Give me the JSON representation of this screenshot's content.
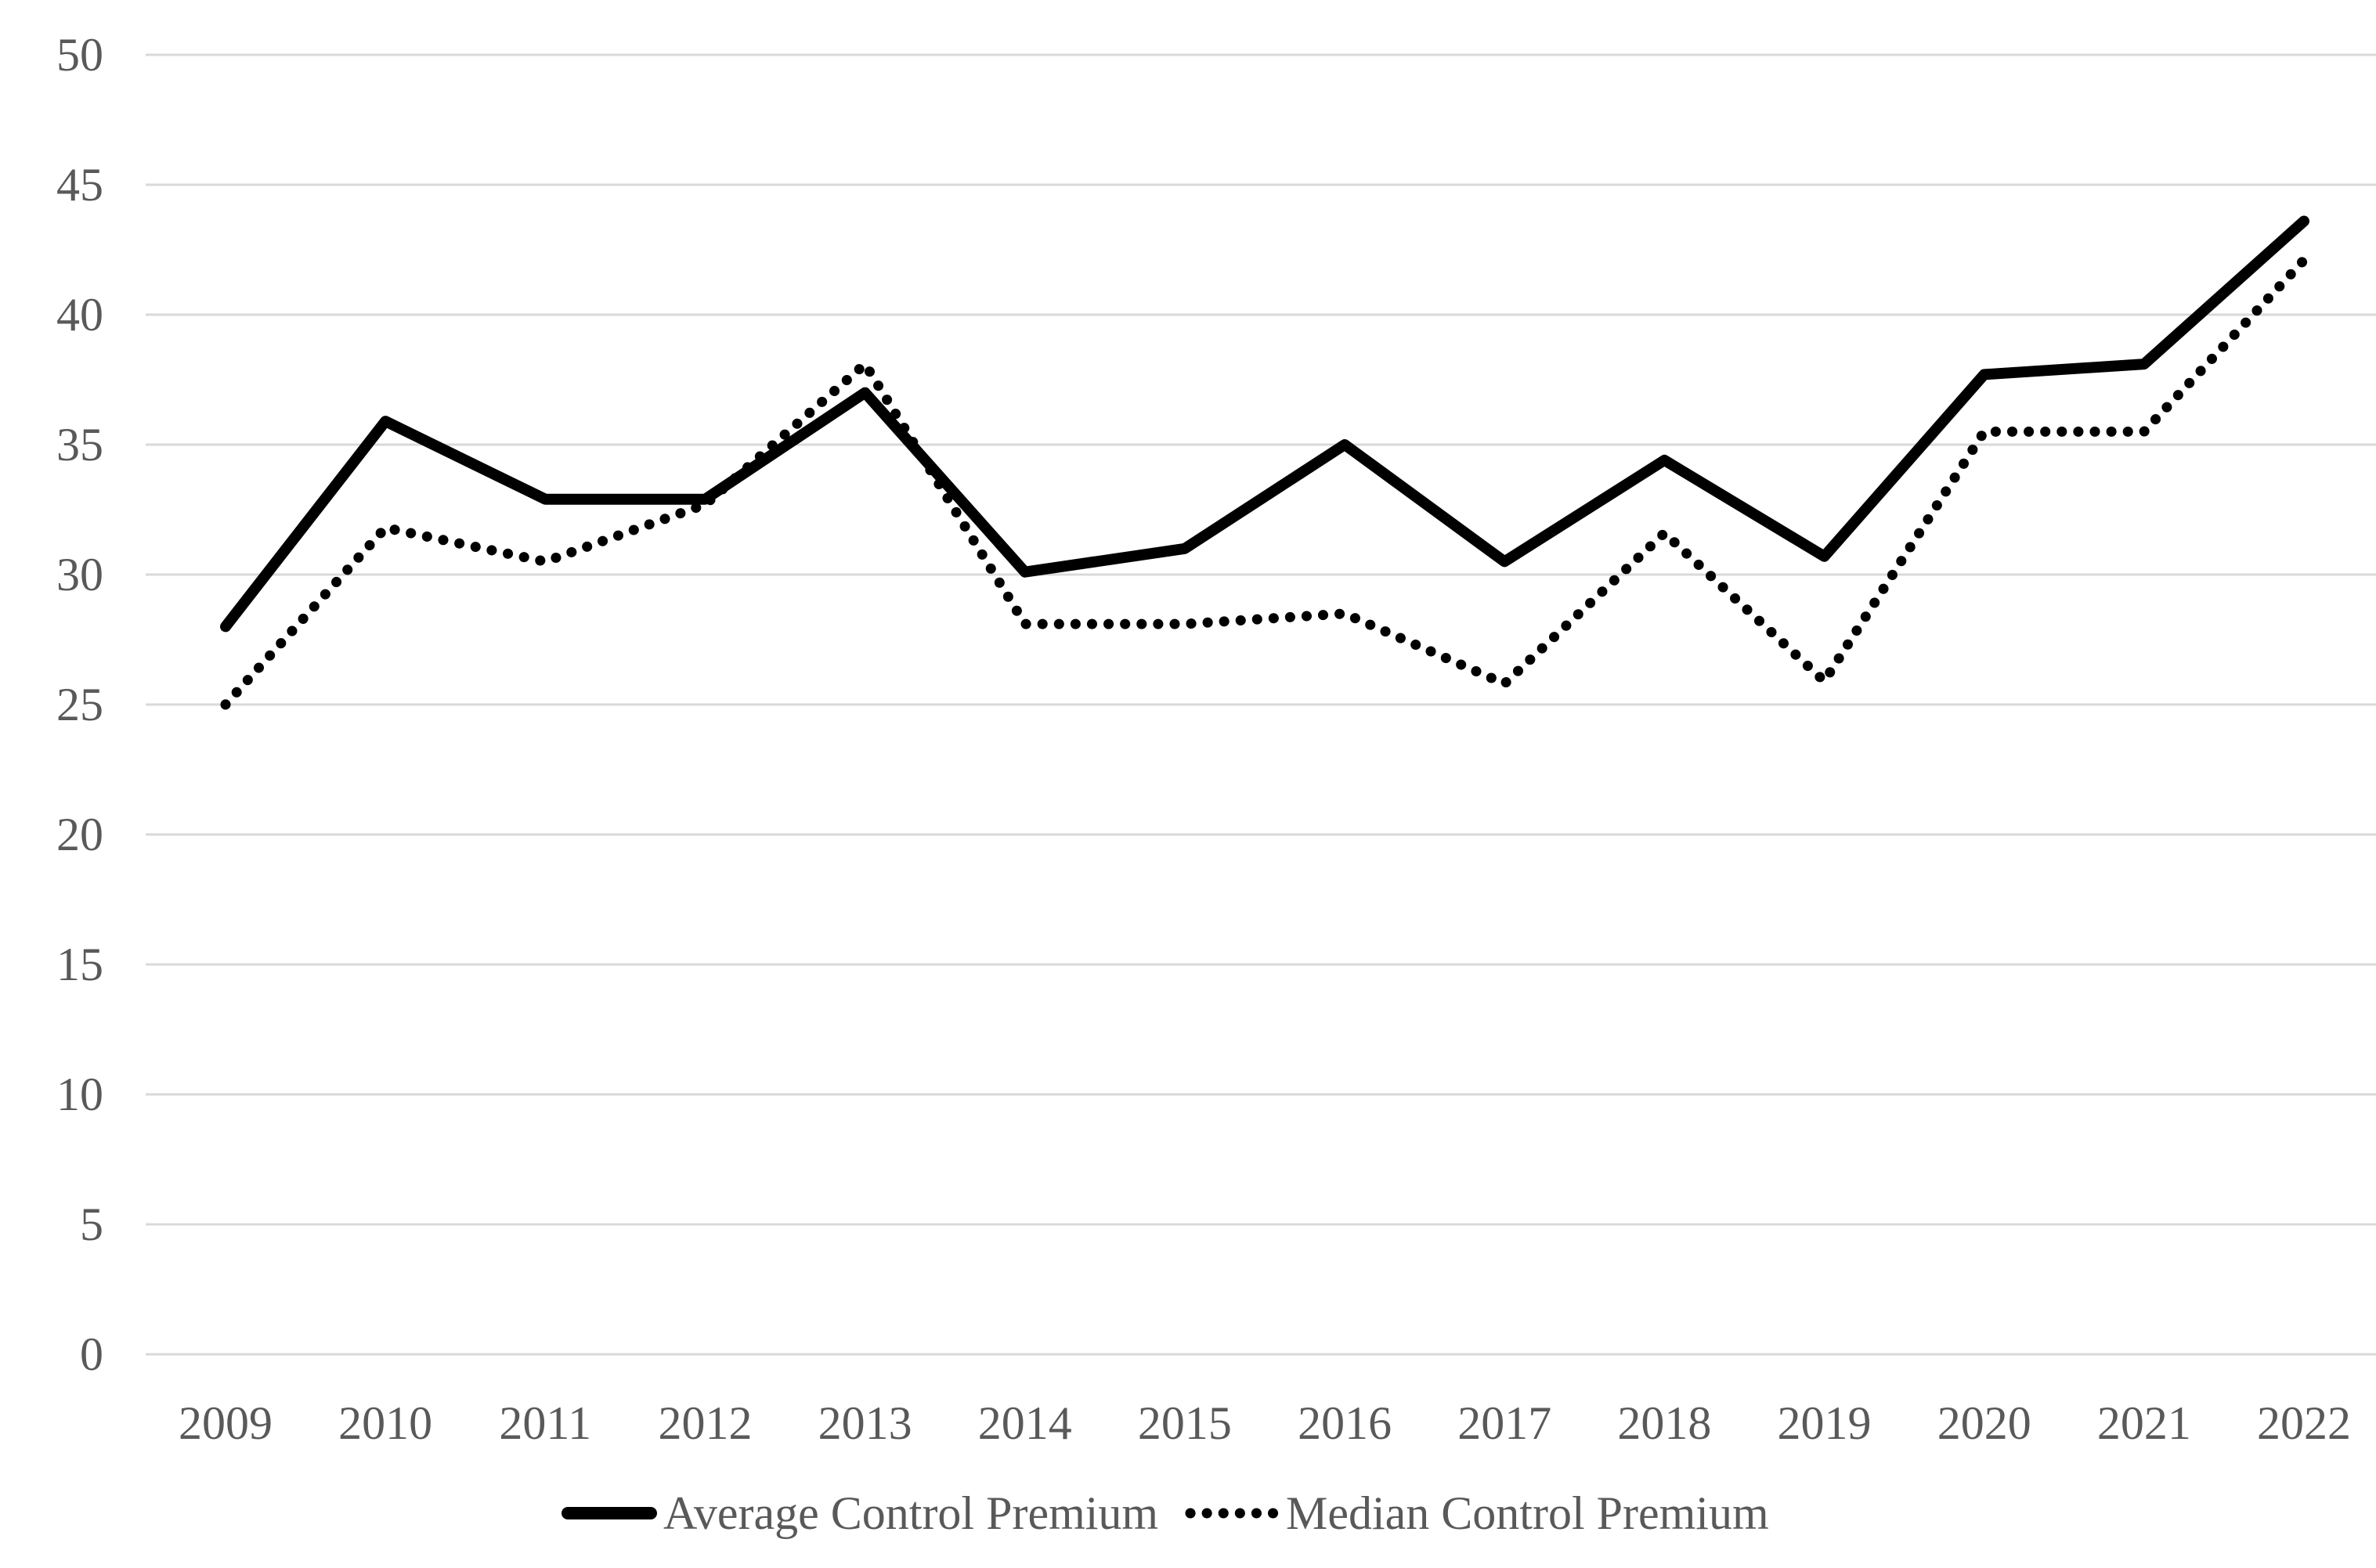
{
  "chart_data": {
    "type": "line",
    "title": "",
    "xlabel": "",
    "ylabel": "",
    "categories": [
      "2009",
      "2010",
      "2011",
      "2012",
      "2013",
      "2014",
      "2015",
      "2016",
      "2017",
      "2018",
      "2019",
      "2020",
      "2021",
      "2022"
    ],
    "series": [
      {
        "name": "Average Control Premium",
        "style": "solid",
        "values": [
          28.0,
          35.9,
          32.9,
          32.9,
          37.0,
          30.1,
          31.0,
          35.0,
          30.5,
          34.4,
          30.7,
          37.7,
          38.1,
          43.6
        ]
      },
      {
        "name": "Median Control Premium",
        "style": "dotted",
        "values": [
          25.0,
          31.8,
          30.5,
          32.7,
          38.1,
          28.1,
          28.1,
          28.5,
          25.8,
          31.6,
          25.9,
          35.5,
          35.5,
          42.1
        ]
      }
    ],
    "ylim": [
      0,
      50
    ],
    "ytick_step": 5,
    "yticks": [
      "0",
      "5",
      "10",
      "15",
      "20",
      "25",
      "30",
      "35",
      "40",
      "45",
      "50"
    ],
    "grid": "horizontal",
    "legend_position": "bottom-center",
    "colors": {
      "line": "#000000",
      "gridline": "#D9D9D9",
      "tick_label": "#595959",
      "legend_label": "#595959",
      "background": "#FFFFFF"
    }
  }
}
